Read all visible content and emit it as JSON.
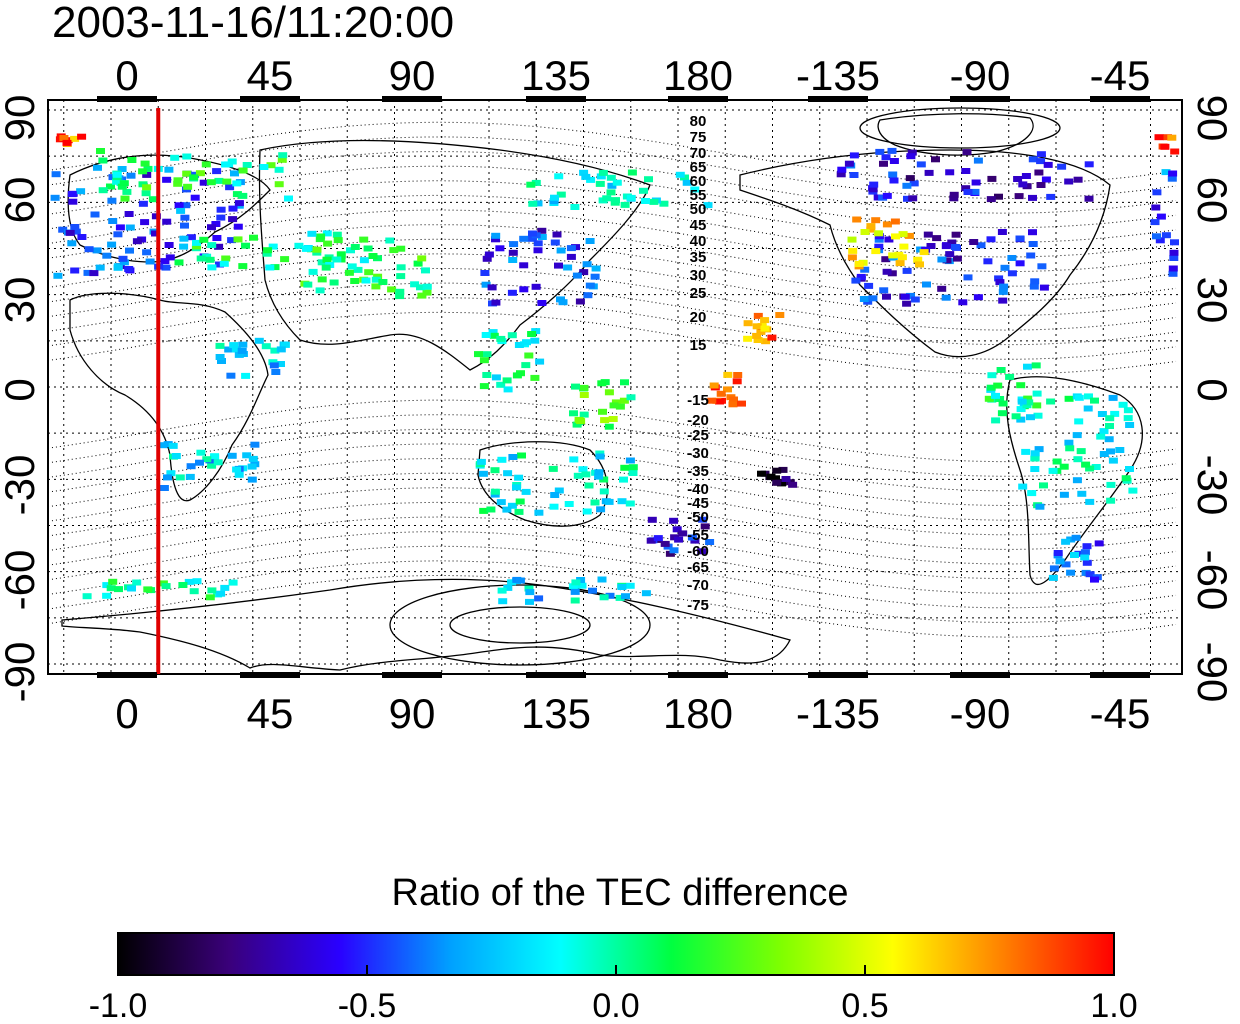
{
  "title": "2003-11-16/11:20:00",
  "colorbar": {
    "title": "Ratio of the TEC difference",
    "ticks": [
      "-1.0",
      "-0.5",
      "0.0",
      "0.5",
      "1.0"
    ],
    "range": [
      -1.0,
      1.0
    ],
    "stops": [
      "#000000",
      "#3a007a",
      "#2a00ff",
      "#00a0ff",
      "#00ffff",
      "#00ff40",
      "#80ff00",
      "#ffff00",
      "#ff8000",
      "#ff0000"
    ]
  },
  "map": {
    "top_ticks": [
      "0",
      "45",
      "90",
      "135",
      "180",
      "-135",
      "-90",
      "-45"
    ],
    "bottom_ticks": [
      "0",
      "45",
      "90",
      "135",
      "180",
      "-135",
      "-90",
      "-45"
    ],
    "left_ticks": [
      "90",
      "60",
      "30",
      "0",
      "-30",
      "-60",
      "-90"
    ],
    "right_ticks": [
      "90",
      "60",
      "30",
      "0",
      "-30",
      "-60",
      "-90"
    ],
    "contour_labels": [
      "80",
      "75",
      "70",
      "65",
      "60",
      "55",
      "50",
      "45",
      "40",
      "35",
      "30",
      "25",
      "20",
      "15",
      "-15",
      "-20",
      "-25",
      "-30",
      "-35",
      "-40",
      "-45",
      "-50",
      "-55",
      "-60",
      "-65",
      "-70",
      "-75"
    ],
    "marker_longitude": 10,
    "marker_color": "#e00000"
  }
}
